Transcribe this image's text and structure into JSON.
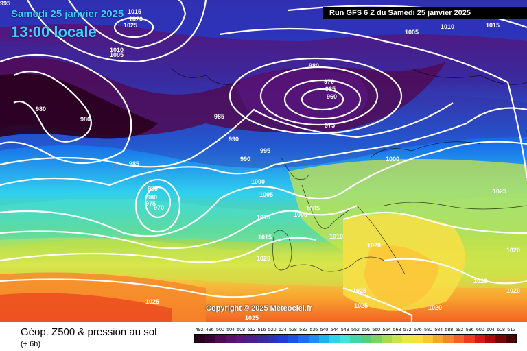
{
  "header": {
    "date_label": "Samedi 25 janvier 2025",
    "time_label": "13:00 locale",
    "run_label": "Run GFS 6 Z du Samedi 25 janvier 2025"
  },
  "copyright": "Copyright © 2025 Meteociel.fr",
  "legend": {
    "title": "Géop. Z500 & pression au sol",
    "subtitle": "(+ 6h)",
    "scale_values": [
      "492",
      "496",
      "500",
      "504",
      "508",
      "512",
      "516",
      "520",
      "524",
      "528",
      "532",
      "536",
      "540",
      "544",
      "548",
      "552",
      "556",
      "560",
      "564",
      "568",
      "572",
      "576",
      "580",
      "584",
      "588",
      "592",
      "596",
      "600",
      "604",
      "608",
      "612"
    ],
    "scale_colors": [
      "#2a001e",
      "#3c0038",
      "#500a55",
      "#5a0f6e",
      "#5a1580",
      "#4b1d8f",
      "#3a2aa0",
      "#2a35b5",
      "#1f3fd0",
      "#1a55e0",
      "#1870ea",
      "#1890f0",
      "#20b0f2",
      "#30d0ee",
      "#45e2d8",
      "#3fd8a8",
      "#55cf7a",
      "#7ad462",
      "#a4dc4f",
      "#c9e34b",
      "#e8e84c",
      "#f8df45",
      "#fbc63a",
      "#f9a631",
      "#f6862a",
      "#f26424",
      "#ea3e1c",
      "#d11b14",
      "#aa0c0c",
      "#7a0404",
      "#4a0000"
    ]
  },
  "isobar_labels": [
    {
      "text": "995"
    },
    {
      "text": "1015"
    },
    {
      "text": "1020"
    },
    {
      "text": "1025"
    },
    {
      "text": "1010"
    },
    {
      "text": "1005"
    },
    {
      "text": "1005"
    },
    {
      "text": "1010"
    },
    {
      "text": "1015"
    },
    {
      "text": "980"
    },
    {
      "text": "970"
    },
    {
      "text": "965"
    },
    {
      "text": "960"
    },
    {
      "text": "975"
    },
    {
      "text": "985"
    },
    {
      "text": "980"
    },
    {
      "text": "980"
    },
    {
      "text": "985"
    },
    {
      "text": "990"
    },
    {
      "text": "995"
    },
    {
      "text": "990"
    },
    {
      "text": "1000"
    },
    {
      "text": "1000"
    },
    {
      "text": "1005"
    },
    {
      "text": "1005"
    },
    {
      "text": "1005"
    },
    {
      "text": "985"
    },
    {
      "text": "980"
    },
    {
      "text": "975"
    },
    {
      "text": "970"
    },
    {
      "text": "1010"
    },
    {
      "text": "1015"
    },
    {
      "text": "1010"
    },
    {
      "text": "1020"
    },
    {
      "text": "1020"
    },
    {
      "text": "1025"
    },
    {
      "text": "1020"
    },
    {
      "text": "1020"
    },
    {
      "text": "1025"
    },
    {
      "text": "1025"
    },
    {
      "text": "1020"
    },
    {
      "text": "1020"
    },
    {
      "text": "1025"
    },
    {
      "text": "1025"
    }
  ]
}
